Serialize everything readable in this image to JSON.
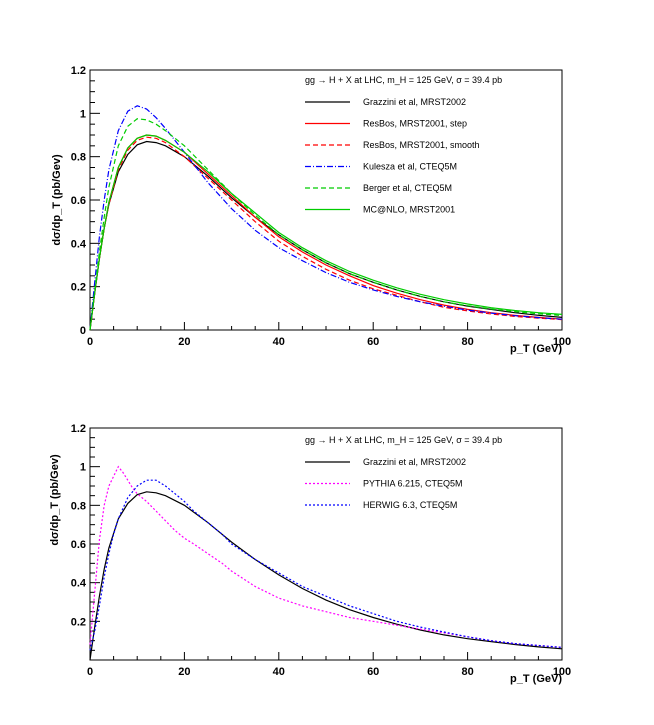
{
  "chart_data": [
    {
      "type": "line",
      "title": "gg → H + X at LHC, m_H = 125 GeV, σ = 39.4 pb",
      "xlabel": "p_T (GeV)",
      "ylabel": "dσ/dp_T (pb/Gev)",
      "xlim": [
        0,
        100
      ],
      "ylim": [
        0,
        1.2
      ],
      "xticks": [
        "0",
        "20",
        "40",
        "60",
        "80",
        "100"
      ],
      "yticks": [
        "0",
        "0.2",
        "0.4",
        "0.6",
        "0.8",
        "1",
        "1.2"
      ],
      "grid": false,
      "legend_position": "top-right",
      "series": [
        {
          "name": "Grazzini et al, MRST2002",
          "color": "#000000",
          "dash": "solid",
          "x": [
            0,
            1,
            2,
            3,
            4,
            6,
            8,
            10,
            12,
            14,
            16,
            20,
            25,
            30,
            35,
            40,
            45,
            50,
            55,
            60,
            65,
            70,
            75,
            80,
            85,
            90,
            95,
            100
          ],
          "y": [
            0,
            0.17,
            0.33,
            0.47,
            0.58,
            0.73,
            0.81,
            0.855,
            0.87,
            0.865,
            0.85,
            0.8,
            0.71,
            0.61,
            0.52,
            0.44,
            0.37,
            0.31,
            0.26,
            0.22,
            0.185,
            0.155,
            0.13,
            0.11,
            0.095,
            0.08,
            0.068,
            0.058
          ]
        },
        {
          "name": "ResBos, MRST2001, step",
          "color": "#ff0000",
          "dash": "solid",
          "x": [
            0,
            1,
            2,
            3,
            4,
            6,
            8,
            10,
            12,
            14,
            16,
            20,
            25,
            30,
            35,
            40,
            45,
            50,
            55,
            60,
            65,
            70,
            75,
            80,
            85,
            90,
            95,
            100
          ],
          "y": [
            0,
            0.17,
            0.33,
            0.47,
            0.59,
            0.75,
            0.84,
            0.885,
            0.9,
            0.895,
            0.875,
            0.82,
            0.72,
            0.62,
            0.52,
            0.43,
            0.36,
            0.3,
            0.25,
            0.205,
            0.17,
            0.14,
            0.115,
            0.095,
            0.08,
            0.068,
            0.058,
            0.05
          ]
        },
        {
          "name": "ResBos, MRST2001, smooth",
          "color": "#ff0000",
          "dash": "5,3",
          "x": [
            0,
            1,
            2,
            3,
            4,
            6,
            8,
            10,
            12,
            14,
            16,
            20,
            25,
            30,
            35,
            40,
            45,
            50,
            55,
            60,
            65,
            70,
            75,
            80,
            85,
            90,
            95,
            100
          ],
          "y": [
            0,
            0.17,
            0.33,
            0.47,
            0.58,
            0.74,
            0.83,
            0.875,
            0.89,
            0.885,
            0.865,
            0.8,
            0.7,
            0.6,
            0.5,
            0.41,
            0.34,
            0.28,
            0.23,
            0.19,
            0.16,
            0.13,
            0.105,
            0.088,
            0.074,
            0.063,
            0.055,
            0.048
          ]
        },
        {
          "name": "Kulesza et al, CTEQ5M",
          "color": "#0000ff",
          "dash": "6,2,1,2",
          "x": [
            0,
            1,
            2,
            3,
            4,
            6,
            8,
            10,
            12,
            14,
            16,
            20,
            25,
            30,
            35,
            40,
            45,
            50,
            55,
            60,
            65,
            70,
            75,
            80,
            85,
            90,
            95,
            100
          ],
          "y": [
            0,
            0.22,
            0.43,
            0.6,
            0.74,
            0.92,
            1.01,
            1.035,
            1.02,
            0.98,
            0.93,
            0.82,
            0.68,
            0.56,
            0.46,
            0.38,
            0.32,
            0.265,
            0.22,
            0.185,
            0.155,
            0.13,
            0.11,
            0.092,
            0.078,
            0.066,
            0.057,
            0.05
          ]
        },
        {
          "name": "Berger et al, CTEQ5M",
          "color": "#00cc00",
          "dash": "5,3",
          "x": [
            0,
            1,
            2,
            3,
            4,
            6,
            8,
            10,
            12,
            14,
            16,
            20,
            25,
            30,
            35,
            40,
            45,
            50,
            55,
            60,
            65,
            70,
            75,
            80,
            85,
            90,
            95,
            100
          ],
          "y": [
            0,
            0.18,
            0.36,
            0.52,
            0.66,
            0.85,
            0.94,
            0.975,
            0.97,
            0.95,
            0.92,
            0.85,
            0.74,
            0.63,
            0.53,
            0.44,
            0.37,
            0.31,
            0.26,
            0.22,
            0.185,
            0.155,
            0.13,
            0.112,
            0.097,
            0.085,
            0.075,
            0.067
          ]
        },
        {
          "name": "MC@NLO, MRST2001",
          "color": "#00cc00",
          "dash": "solid",
          "x": [
            0,
            1,
            2,
            3,
            4,
            6,
            8,
            10,
            12,
            14,
            16,
            20,
            25,
            30,
            35,
            40,
            45,
            50,
            55,
            60,
            65,
            70,
            75,
            80,
            85,
            90,
            95,
            100
          ],
          "y": [
            0,
            0.17,
            0.33,
            0.47,
            0.59,
            0.75,
            0.84,
            0.885,
            0.9,
            0.895,
            0.875,
            0.82,
            0.73,
            0.63,
            0.54,
            0.45,
            0.38,
            0.32,
            0.27,
            0.23,
            0.195,
            0.165,
            0.14,
            0.12,
            0.103,
            0.09,
            0.08,
            0.072
          ]
        }
      ]
    },
    {
      "type": "line",
      "title": "gg → H + X at LHC, m_H = 125 GeV, σ = 39.4 pb",
      "xlabel": "p_T (GeV)",
      "ylabel": "dσ/dp_T (pb/Gev)",
      "xlim": [
        0,
        100
      ],
      "ylim": [
        0,
        1.2
      ],
      "xticks": [
        "0",
        "20",
        "40",
        "60",
        "80",
        "100"
      ],
      "yticks": [
        "0.2",
        "0.4",
        "0.6",
        "0.8",
        "1",
        "1.2"
      ],
      "grid": false,
      "legend_position": "top-right",
      "series": [
        {
          "name": "Grazzini et al, MRST2002",
          "color": "#000000",
          "dash": "solid",
          "x": [
            0,
            1,
            2,
            3,
            4,
            6,
            8,
            10,
            12,
            14,
            16,
            20,
            25,
            30,
            35,
            40,
            45,
            50,
            55,
            60,
            65,
            70,
            75,
            80,
            85,
            90,
            95,
            100
          ],
          "y": [
            0,
            0.17,
            0.33,
            0.47,
            0.58,
            0.73,
            0.81,
            0.855,
            0.87,
            0.865,
            0.85,
            0.8,
            0.71,
            0.61,
            0.52,
            0.44,
            0.37,
            0.31,
            0.26,
            0.22,
            0.185,
            0.155,
            0.13,
            0.11,
            0.095,
            0.08,
            0.068,
            0.058
          ]
        },
        {
          "name": "PYTHIA 6.215, CTEQ5M",
          "color": "#ff00ff",
          "dash": "2,2",
          "x": [
            0,
            1,
            2,
            3,
            4,
            5,
            6,
            7,
            8,
            9,
            10,
            12,
            14,
            16,
            18,
            20,
            22,
            25,
            28,
            30,
            35,
            40,
            45,
            50,
            55,
            60,
            65,
            70,
            75,
            80,
            85,
            90,
            95,
            100
          ],
          "y": [
            0.08,
            0.35,
            0.62,
            0.8,
            0.9,
            0.95,
            1.0,
            0.97,
            0.93,
            0.89,
            0.86,
            0.82,
            0.77,
            0.72,
            0.67,
            0.63,
            0.6,
            0.55,
            0.5,
            0.46,
            0.38,
            0.32,
            0.28,
            0.25,
            0.22,
            0.2,
            0.18,
            0.16,
            0.14,
            0.12,
            0.1,
            0.085,
            0.075,
            0.065
          ]
        },
        {
          "name": "HERWIG 6.3, CTEQ5M",
          "color": "#0000ff",
          "dash": "2,2",
          "x": [
            0,
            1,
            2,
            3,
            4,
            5,
            6,
            8,
            10,
            12,
            14,
            16,
            18,
            20,
            22,
            25,
            28,
            30,
            35,
            40,
            45,
            50,
            55,
            60,
            65,
            70,
            75,
            80,
            85,
            90,
            95,
            100
          ],
          "y": [
            0.05,
            0.15,
            0.28,
            0.43,
            0.55,
            0.65,
            0.73,
            0.84,
            0.9,
            0.93,
            0.93,
            0.9,
            0.86,
            0.82,
            0.77,
            0.71,
            0.65,
            0.6,
            0.52,
            0.45,
            0.38,
            0.33,
            0.28,
            0.24,
            0.2,
            0.17,
            0.145,
            0.12,
            0.1,
            0.085,
            0.075,
            0.065
          ]
        }
      ]
    }
  ]
}
